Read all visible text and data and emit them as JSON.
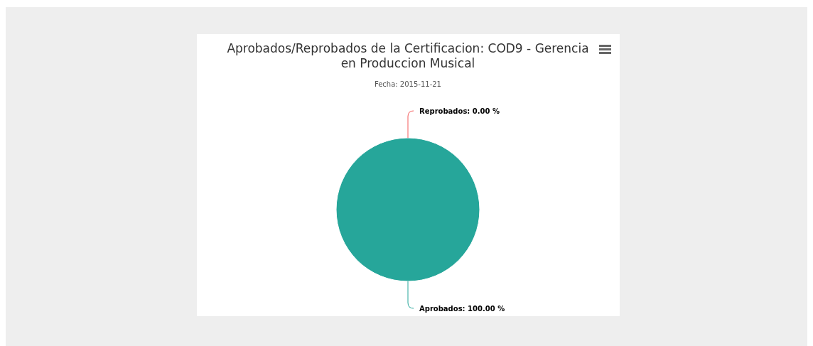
{
  "chart_data": {
    "type": "pie",
    "title": "Aprobados/Reprobados de la Certificacion: COD9 - Gerencia en Produccion Musical",
    "subtitle": "Fecha: 2015-11-21",
    "categories": [
      "Reprobados",
      "Aprobados"
    ],
    "values": [
      0,
      100
    ],
    "colors": [
      "#f45b5b",
      "#26a69a"
    ],
    "value_labels": [
      ": 0.00 %",
      ": 100.00 %"
    ]
  }
}
